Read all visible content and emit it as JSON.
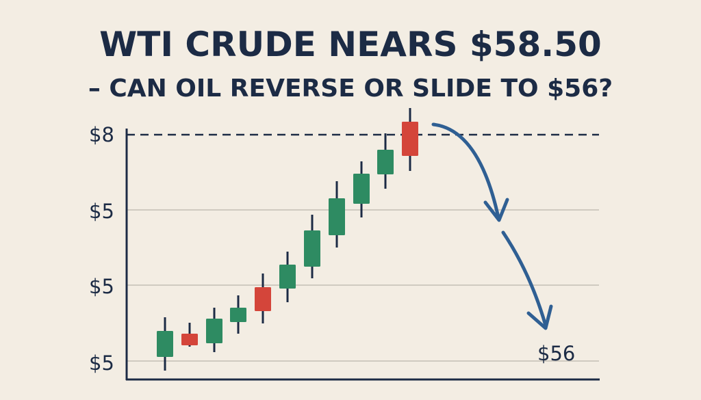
{
  "header": {
    "title": [
      "WTI CRUDE NEARS $58.50",
      "– CAN OIL REVERSE OR SLIDE TO $56?"
    ]
  },
  "axis": {
    "labels": [
      "$8",
      "$5",
      "$5",
      "$5"
    ]
  },
  "annotation": "$56"
}
